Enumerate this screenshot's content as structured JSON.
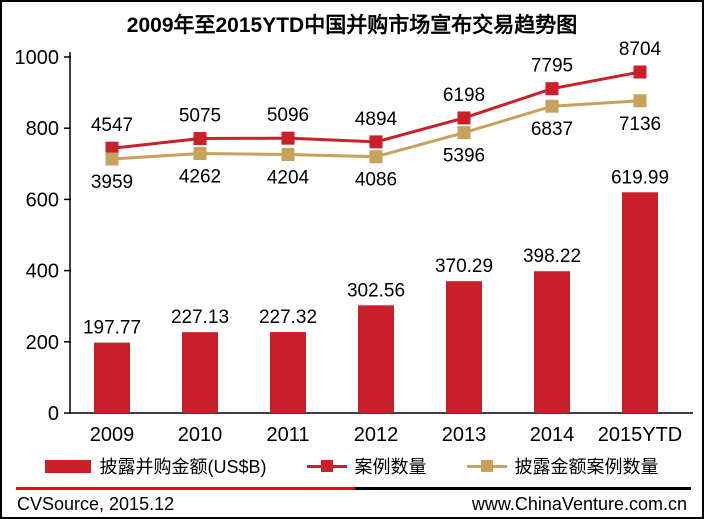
{
  "title": "2009年至2015YTD中国并购市场宣布交易趋势图",
  "legend": {
    "items": [
      {
        "label": "披露并购金额(US$B)",
        "type": "bar",
        "color": "#C9202B"
      },
      {
        "label": "案例数量",
        "type": "line",
        "color": "#C9202B"
      },
      {
        "label": "披露金额案例数量",
        "type": "line",
        "color": "#C6A25C"
      }
    ]
  },
  "footer": {
    "left": "CVSource, 2015.12",
    "right": "www.ChinaVenture.com.cn"
  },
  "colors": {
    "bar_red": "#C9202B",
    "line_red": "#C9202B",
    "line_gold": "#C6A25C",
    "divider_red": "#FF0000",
    "axis": "#000000"
  },
  "chart_data": {
    "type": "bar",
    "title": "2009年至2015YTD中国并购市场宣布交易趋势图",
    "categories": [
      "2009",
      "2010",
      "2011",
      "2012",
      "2013",
      "2014",
      "2015YTD"
    ],
    "bar_series": {
      "name": "披露并购金额(US$B)",
      "values": [
        197.77,
        227.13,
        227.32,
        302.56,
        370.29,
        398.22,
        619.99
      ],
      "labels": [
        "197.77",
        "227.13",
        "227.32",
        "302.56",
        "370.29",
        "398.22",
        "619.99"
      ],
      "color": "#C9202B",
      "axis": "left"
    },
    "line_series": [
      {
        "name": "案例数量",
        "values": [
          4547,
          5075,
          5096,
          4894,
          6198,
          7795,
          8704
        ],
        "color": "#C9202B",
        "label_position": "above",
        "axis": "right-hidden"
      },
      {
        "name": "披露金额案例数量",
        "values": [
          3959,
          4262,
          4204,
          4086,
          5396,
          6837,
          7136
        ],
        "color": "#C6A25C",
        "label_position": "below",
        "axis": "right-hidden"
      }
    ],
    "y_left": {
      "min": 0,
      "max": 1000,
      "step": 200
    },
    "xlabel": "",
    "ylabel": "",
    "grid": false,
    "legend_position": "bottom"
  }
}
